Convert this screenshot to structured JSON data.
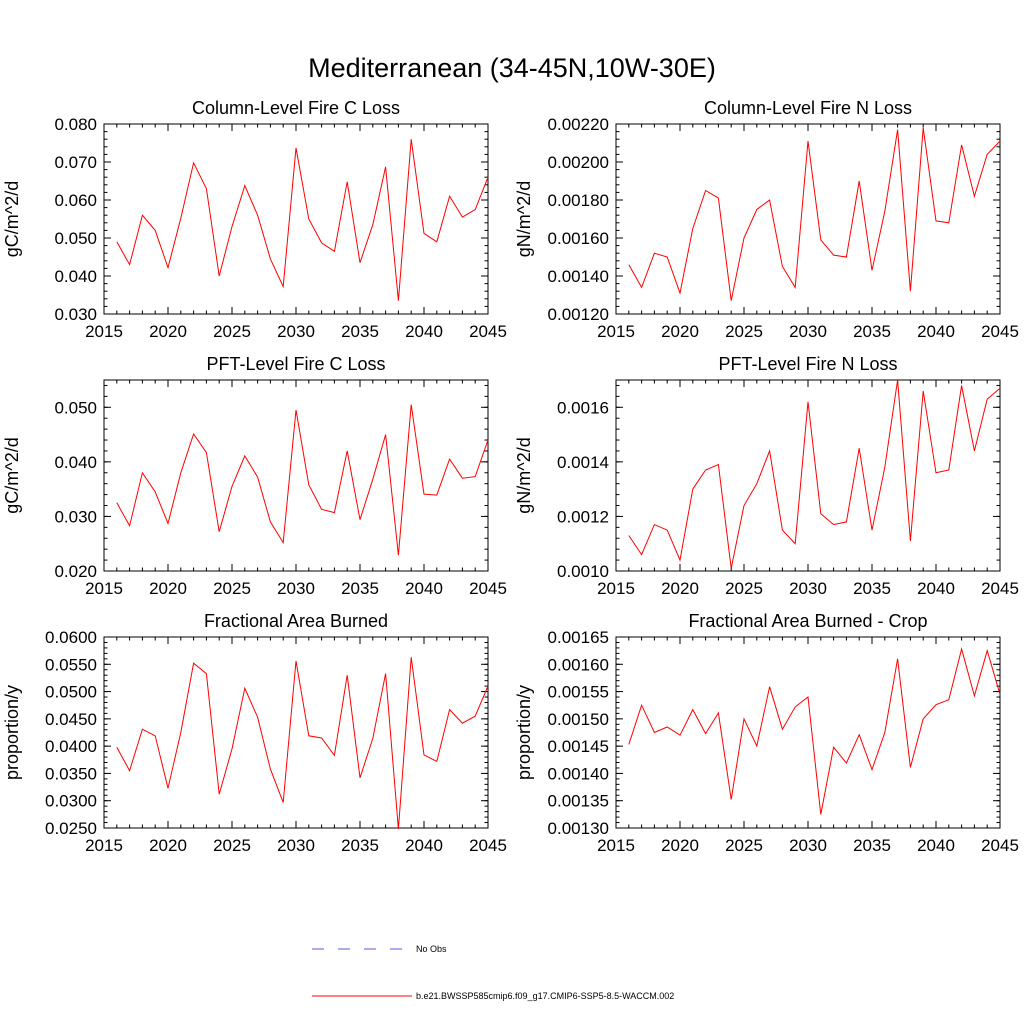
{
  "title": "Mediterranean (34-45N,10W-30E)",
  "colors": {
    "series": "#ff0000",
    "obs": "#5a5ad8",
    "axis": "#000000"
  },
  "legend": {
    "placement": "bottom-center",
    "entries": [
      {
        "label": "No Obs",
        "style": "dashed",
        "color": "#5a5ad8"
      },
      {
        "label": "b.e21.BWSSP585cmip6.f09_g17.CMIP6-SSP5-8.5-WACCM.002",
        "style": "solid",
        "color": "#ff0000"
      }
    ]
  },
  "chart_data": [
    {
      "type": "line",
      "title": "Column-Level Fire C Loss",
      "xlabel": "",
      "ylabel": "gC/m^2/d",
      "xlim": [
        2015,
        2045
      ],
      "ylim": [
        0.03,
        0.08
      ],
      "xticks": [
        "2015",
        "2020",
        "2025",
        "2030",
        "2035",
        "2040",
        "2045"
      ],
      "yticks": [
        "0.030",
        "0.040",
        "0.050",
        "0.060",
        "0.070",
        "0.080"
      ],
      "x": [
        2016,
        2017,
        2018,
        2019,
        2020,
        2021,
        2022,
        2023,
        2024,
        2025,
        2026,
        2027,
        2028,
        2029,
        2030,
        2031,
        2032,
        2033,
        2034,
        2035,
        2036,
        2037,
        2038,
        2039,
        2040,
        2041,
        2042,
        2043,
        2044,
        2045
      ],
      "series": [
        {
          "name": "b.e21.BWSSP585cmip6.f09_g17.CMIP6-SSP5-8.5-WACCM.002",
          "values": [
            0.049,
            0.043,
            0.056,
            0.052,
            0.0422,
            0.0552,
            0.0698,
            0.063,
            0.04,
            0.053,
            0.0638,
            0.056,
            0.0445,
            0.0372,
            0.0737,
            0.055,
            0.0487,
            0.0465,
            0.0648,
            0.0435,
            0.0535,
            0.0687,
            0.0335,
            0.076,
            0.0512,
            0.049,
            0.061,
            0.0555,
            0.0575,
            0.066
          ]
        }
      ]
    },
    {
      "type": "line",
      "title": "Column-Level Fire N Loss",
      "xlabel": "",
      "ylabel": "gN/m^2/d",
      "xlim": [
        2015,
        2045
      ],
      "ylim": [
        0.0012,
        0.0022
      ],
      "xticks": [
        "2015",
        "2020",
        "2025",
        "2030",
        "2035",
        "2040",
        "2045"
      ],
      "yticks": [
        "0.00120",
        "0.00140",
        "0.00160",
        "0.00180",
        "0.00200",
        "0.00220"
      ],
      "x": [
        2016,
        2017,
        2018,
        2019,
        2020,
        2021,
        2022,
        2023,
        2024,
        2025,
        2026,
        2027,
        2028,
        2029,
        2030,
        2031,
        2032,
        2033,
        2034,
        2035,
        2036,
        2037,
        2038,
        2039,
        2040,
        2041,
        2042,
        2043,
        2044,
        2045
      ],
      "series": [
        {
          "name": "b.e21.BWSSP585cmip6.f09_g17.CMIP6-SSP5-8.5-WACCM.002",
          "values": [
            0.00146,
            0.00134,
            0.00152,
            0.0015,
            0.00131,
            0.00165,
            0.00185,
            0.00181,
            0.00127,
            0.0016,
            0.00175,
            0.0018,
            0.00145,
            0.00134,
            0.00211,
            0.00159,
            0.00151,
            0.0015,
            0.0019,
            0.00143,
            0.00174,
            0.00217,
            0.00132,
            0.00218,
            0.00169,
            0.00168,
            0.00209,
            0.00182,
            0.00204,
            0.00211
          ]
        }
      ]
    },
    {
      "type": "line",
      "title": "PFT-Level Fire C Loss",
      "xlabel": "",
      "ylabel": "gC/m^2/d",
      "xlim": [
        2015,
        2045
      ],
      "ylim": [
        0.02,
        0.055
      ],
      "xticks": [
        "2015",
        "2020",
        "2025",
        "2030",
        "2035",
        "2040",
        "2045"
      ],
      "yticks": [
        "0.020",
        "0.030",
        "0.040",
        "0.050"
      ],
      "x": [
        2016,
        2017,
        2018,
        2019,
        2020,
        2021,
        2022,
        2023,
        2024,
        2025,
        2026,
        2027,
        2028,
        2029,
        2030,
        2031,
        2032,
        2033,
        2034,
        2035,
        2036,
        2037,
        2038,
        2039,
        2040,
        2041,
        2042,
        2043,
        2044,
        2045
      ],
      "series": [
        {
          "name": "b.e21.BWSSP585cmip6.f09_g17.CMIP6-SSP5-8.5-WACCM.002",
          "values": [
            0.0325,
            0.0283,
            0.038,
            0.0345,
            0.0287,
            0.038,
            0.0451,
            0.0417,
            0.0272,
            0.0355,
            0.0411,
            0.0372,
            0.029,
            0.0252,
            0.0495,
            0.0358,
            0.0313,
            0.0307,
            0.042,
            0.0294,
            0.0368,
            0.045,
            0.0229,
            0.0505,
            0.0341,
            0.0339,
            0.0405,
            0.037,
            0.0373,
            0.044
          ]
        }
      ]
    },
    {
      "type": "line",
      "title": "PFT-Level Fire N Loss",
      "xlabel": "",
      "ylabel": "gN/m^2/d",
      "xlim": [
        2015,
        2045
      ],
      "ylim": [
        0.001,
        0.0017
      ],
      "xticks": [
        "2015",
        "2020",
        "2025",
        "2030",
        "2035",
        "2040",
        "2045"
      ],
      "yticks": [
        "0.0010",
        "0.0012",
        "0.0014",
        "0.0016"
      ],
      "x": [
        2016,
        2017,
        2018,
        2019,
        2020,
        2021,
        2022,
        2023,
        2024,
        2025,
        2026,
        2027,
        2028,
        2029,
        2030,
        2031,
        2032,
        2033,
        2034,
        2035,
        2036,
        2037,
        2038,
        2039,
        2040,
        2041,
        2042,
        2043,
        2044,
        2045
      ],
      "series": [
        {
          "name": "b.e21.BWSSP585cmip6.f09_g17.CMIP6-SSP5-8.5-WACCM.002",
          "values": [
            0.00113,
            0.00106,
            0.00117,
            0.00115,
            0.00104,
            0.0013,
            0.00137,
            0.00139,
            0.00101,
            0.00124,
            0.00132,
            0.00144,
            0.00115,
            0.0011,
            0.00162,
            0.00121,
            0.00117,
            0.00118,
            0.00145,
            0.00115,
            0.00138,
            0.0017,
            0.00111,
            0.00166,
            0.00136,
            0.00137,
            0.00168,
            0.00144,
            0.00163,
            0.00167
          ]
        }
      ]
    },
    {
      "type": "line",
      "title": "Fractional Area Burned",
      "xlabel": "",
      "ylabel": "proportion/y",
      "xlim": [
        2015,
        2045
      ],
      "ylim": [
        0.025,
        0.06
      ],
      "xticks": [
        "2015",
        "2020",
        "2025",
        "2030",
        "2035",
        "2040",
        "2045"
      ],
      "yticks": [
        "0.0250",
        "0.0300",
        "0.0350",
        "0.0400",
        "0.0450",
        "0.0500",
        "0.0550",
        "0.0600"
      ],
      "x": [
        2016,
        2017,
        2018,
        2019,
        2020,
        2021,
        2022,
        2023,
        2024,
        2025,
        2026,
        2027,
        2028,
        2029,
        2030,
        2031,
        2032,
        2033,
        2034,
        2035,
        2036,
        2037,
        2038,
        2039,
        2040,
        2041,
        2042,
        2043,
        2044,
        2045
      ],
      "series": [
        {
          "name": "b.e21.BWSSP585cmip6.f09_g17.CMIP6-SSP5-8.5-WACCM.002",
          "values": [
            0.0398,
            0.0355,
            0.0431,
            0.0419,
            0.0323,
            0.0425,
            0.0552,
            0.0533,
            0.0312,
            0.0395,
            0.0506,
            0.0453,
            0.0358,
            0.0297,
            0.0556,
            0.0419,
            0.0415,
            0.0383,
            0.053,
            0.0342,
            0.0414,
            0.0533,
            0.0248,
            0.0563,
            0.0384,
            0.0372,
            0.0467,
            0.0442,
            0.0455,
            0.051
          ]
        }
      ]
    },
    {
      "type": "line",
      "title": "Fractional Area Burned - Crop",
      "xlabel": "",
      "ylabel": "proportion/y",
      "xlim": [
        2015,
        2045
      ],
      "ylim": [
        0.0013,
        0.00165
      ],
      "xticks": [
        "2015",
        "2020",
        "2025",
        "2030",
        "2035",
        "2040",
        "2045"
      ],
      "yticks": [
        "0.00130",
        "0.00135",
        "0.00140",
        "0.00145",
        "0.00150",
        "0.00155",
        "0.00160",
        "0.00165"
      ],
      "x": [
        2016,
        2017,
        2018,
        2019,
        2020,
        2021,
        2022,
        2023,
        2024,
        2025,
        2026,
        2027,
        2028,
        2029,
        2030,
        2031,
        2032,
        2033,
        2034,
        2035,
        2036,
        2037,
        2038,
        2039,
        2040,
        2041,
        2042,
        2043,
        2044,
        2045
      ],
      "series": [
        {
          "name": "b.e21.BWSSP585cmip6.f09_g17.CMIP6-SSP5-8.5-WACCM.002",
          "values": [
            0.001453,
            0.001525,
            0.001475,
            0.001485,
            0.00147,
            0.001517,
            0.001473,
            0.001511,
            0.001352,
            0.0015,
            0.00145,
            0.001559,
            0.001481,
            0.001522,
            0.00154,
            0.001325,
            0.001448,
            0.001419,
            0.001471,
            0.001407,
            0.001475,
            0.00161,
            0.001411,
            0.0015,
            0.001526,
            0.001535,
            0.001628,
            0.001542,
            0.001625,
            0.001545
          ]
        }
      ]
    }
  ]
}
